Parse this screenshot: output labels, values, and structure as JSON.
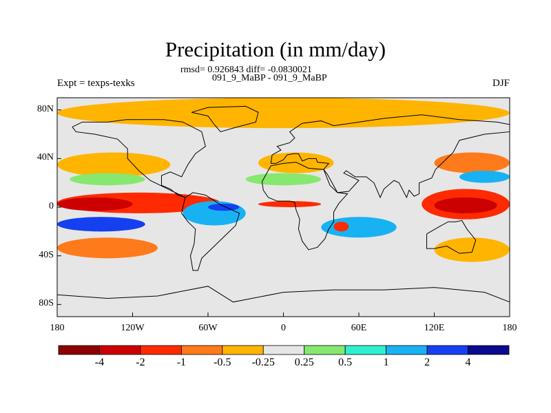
{
  "chart_data": {
    "type": "heatmap",
    "title": "Precipitation (in mm/day)",
    "stats_line": "rmsd= 0.926843 diff= -0.0830021",
    "experiment_line": "091_9_MaBP - 091_9_MaBP",
    "left_string": "Expt = texps-texks",
    "right_string": "DJF",
    "x_ticks": [
      "180",
      "120W",
      "60W",
      "0",
      "60E",
      "120E",
      "180"
    ],
    "y_ticks": [
      "80N",
      "40N",
      "0",
      "40S",
      "80S"
    ],
    "xlim": [
      -180,
      180
    ],
    "ylim": [
      -90,
      90
    ],
    "colorbar": {
      "colors": [
        "#8b0000",
        "#cc0000",
        "#ff2a00",
        "#ff7a1a",
        "#ffb400",
        "#e6e6e6",
        "#86e86e",
        "#2ef0d0",
        "#18b2f2",
        "#1540f0",
        "#0a0a90"
      ],
      "labels": [
        "-4",
        "-2",
        "-1",
        "-0.5",
        "-0.25",
        "0.25",
        "0.5",
        "1",
        "2",
        "4"
      ]
    },
    "regions": [
      {
        "lon": [
          -180,
          180
        ],
        "lat": [
          65,
          90
        ],
        "level": -0.3
      },
      {
        "lon": [
          -180,
          -90
        ],
        "lat": [
          25,
          45
        ],
        "level": -0.5
      },
      {
        "lon": [
          -170,
          -110
        ],
        "lat": [
          18,
          28
        ],
        "level": 0.4
      },
      {
        "lon": [
          -180,
          -50
        ],
        "lat": [
          -5,
          12
        ],
        "level": -1.5
      },
      {
        "lon": [
          -180,
          -120
        ],
        "lat": [
          -3,
          8
        ],
        "level": -3
      },
      {
        "lon": [
          -180,
          -110
        ],
        "lat": [
          -20,
          -8
        ],
        "level": 2
      },
      {
        "lon": [
          -165,
          -120
        ],
        "lat": [
          -18,
          -12
        ],
        "level": 3
      },
      {
        "lon": [
          -180,
          -100
        ],
        "lat": [
          -42,
          -25
        ],
        "level": -1
      },
      {
        "lon": [
          -80,
          -30
        ],
        "lat": [
          -15,
          5
        ],
        "level": 1.5
      },
      {
        "lon": [
          -60,
          -35
        ],
        "lat": [
          -3,
          3
        ],
        "level": 3
      },
      {
        "lon": [
          -20,
          30
        ],
        "lat": [
          0,
          5
        ],
        "level": -2
      },
      {
        "lon": [
          30,
          90
        ],
        "lat": [
          -25,
          -8
        ],
        "level": 1
      },
      {
        "lon": [
          40,
          52
        ],
        "lat": [
          -20,
          -12
        ],
        "level": -2
      },
      {
        "lon": [
          -20,
          40
        ],
        "lat": [
          28,
          45
        ],
        "level": -0.5
      },
      {
        "lon": [
          -30,
          30
        ],
        "lat": [
          18,
          28
        ],
        "level": 0.4
      },
      {
        "lon": [
          110,
          180
        ],
        "lat": [
          -10,
          15
        ],
        "level": -2
      },
      {
        "lon": [
          120,
          170
        ],
        "lat": [
          -5,
          8
        ],
        "level": -4
      },
      {
        "lon": [
          120,
          180
        ],
        "lat": [
          28,
          45
        ],
        "level": -1
      },
      {
        "lon": [
          140,
          180
        ],
        "lat": [
          20,
          30
        ],
        "level": 1
      },
      {
        "lon": [
          120,
          180
        ],
        "lat": [
          -45,
          -25
        ],
        "level": -0.5
      },
      {
        "lon": [
          -180,
          180
        ],
        "lat": [
          -75,
          -45
        ],
        "level": 0.1
      }
    ]
  }
}
